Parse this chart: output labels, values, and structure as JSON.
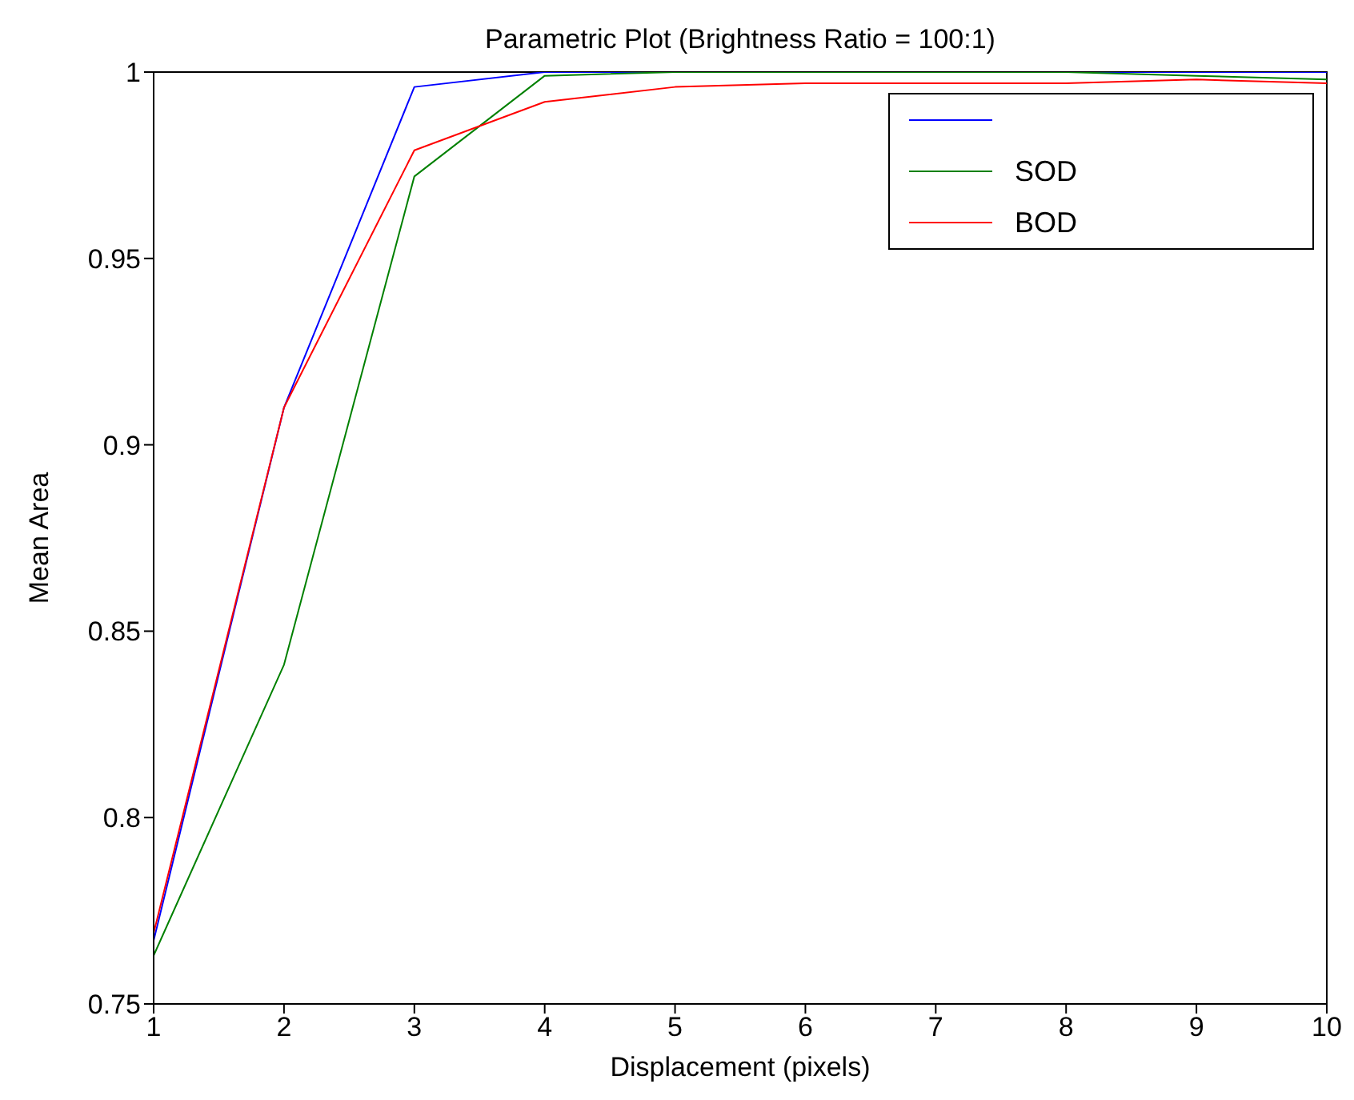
{
  "chart_data": {
    "type": "line",
    "title": "Parametric Plot (Brightness Ratio = 100:1)",
    "xlabel": "Displacement (pixels)",
    "ylabel": "Mean Area",
    "x": [
      1,
      2,
      3,
      4,
      5,
      6,
      7,
      8,
      9,
      10
    ],
    "series": [
      {
        "color": "#0000ff",
        "values": [
          0.767,
          0.91,
          0.996,
          1.0,
          1.0,
          1.0,
          1.0,
          1.0,
          1.0,
          1.0
        ]
      },
      {
        "name": "SOD",
        "color": "#008000",
        "values": [
          0.763,
          0.841,
          0.972,
          0.999,
          1.0,
          1.0,
          1.0,
          1.0,
          0.999,
          0.998
        ]
      },
      {
        "name": "BOD",
        "color": "#ff0000",
        "values": [
          0.769,
          0.91,
          0.979,
          0.992,
          0.996,
          0.997,
          0.997,
          0.997,
          0.998,
          0.997
        ]
      }
    ],
    "xlim": [
      1,
      10
    ],
    "xticks": [
      1,
      2,
      3,
      4,
      5,
      6,
      7,
      8,
      9,
      10
    ],
    "ylim": [
      0.75,
      1
    ],
    "yticks": [
      0.75,
      0.8,
      0.85,
      0.9,
      0.95,
      1
    ],
    "grid": false,
    "legend": "top right",
    "marker": "none",
    "line_style": "solid"
  }
}
